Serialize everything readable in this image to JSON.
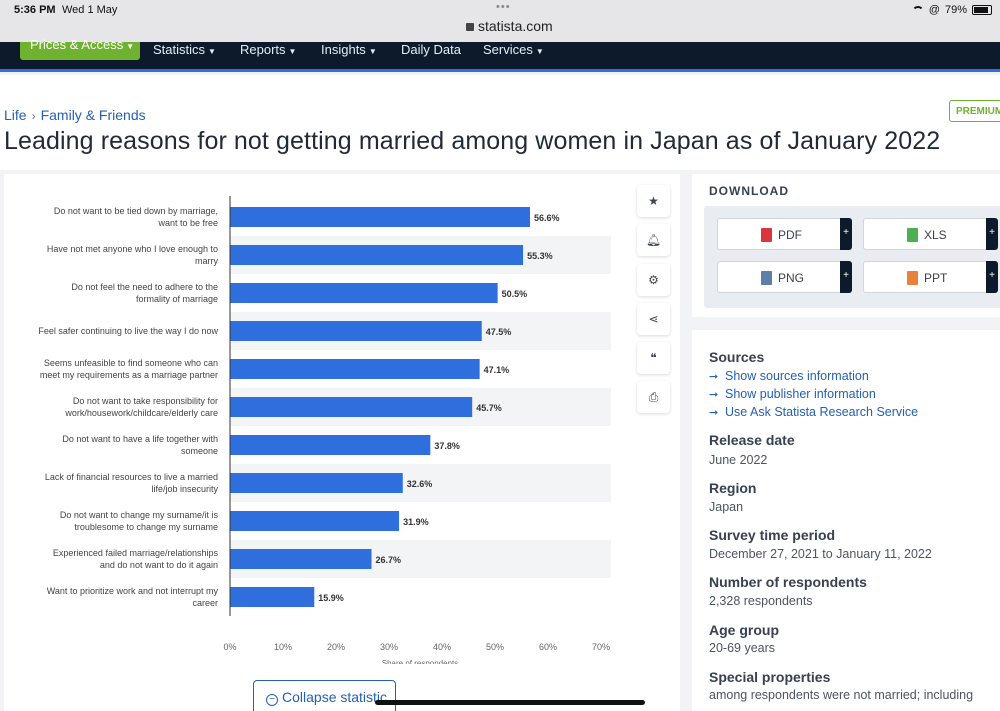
{
  "status_bar": {
    "time": "5:36 PM",
    "date": "Wed 1 May",
    "url": "statista.com",
    "battery": "79%"
  },
  "nav": {
    "items": [
      {
        "label": "Prices & Access"
      },
      {
        "label": "Statistics"
      },
      {
        "label": "Reports"
      },
      {
        "label": "Insights"
      },
      {
        "label": "Daily Data"
      },
      {
        "label": "Services"
      }
    ]
  },
  "breadcrumb": [
    "Life",
    "Family & Friends"
  ],
  "premium_badge": "PREMIUM",
  "title": "Leading reasons for not getting married among women in Japan as of January 2022",
  "tools": [
    "star-icon",
    "bell-icon",
    "gear-icon",
    "share-icon",
    "quote-icon",
    "print-icon"
  ],
  "collapse_label": "Collapse statistic",
  "download": {
    "title": "DOWNLOAD",
    "buttons": [
      {
        "label": "PDF",
        "icon": "pdf-file-icon",
        "color": "#d9363e"
      },
      {
        "label": "XLS",
        "icon": "xls-file-icon",
        "color": "#4caf50"
      },
      {
        "label": "PNG",
        "icon": "png-file-icon",
        "color": "#5b7fa8"
      },
      {
        "label": "PPT",
        "icon": "ppt-file-icon",
        "color": "#e8823b"
      }
    ],
    "plus": "+"
  },
  "info": {
    "sources_title": "Sources",
    "links": [
      "Show sources information",
      "Show publisher information",
      "Use Ask Statista Research Service"
    ],
    "release_date_title": "Release date",
    "release_date": "June 2022",
    "region_title": "Region",
    "region": "Japan",
    "survey_title": "Survey time period",
    "survey": "December 27, 2021 to January 11, 2022",
    "respondents_title": "Number of respondents",
    "respondents": "2,328 respondents",
    "age_title": "Age group",
    "age": "20-69 years",
    "special_title": "Special properties",
    "special": "among respondents were not married; including"
  },
  "colors": {
    "bar": "#2f6fdd",
    "nav_bg": "#0c1a2b",
    "accent_green": "#6fb22f",
    "link": "#2460b4"
  },
  "chart_data": {
    "type": "bar",
    "orientation": "horizontal",
    "categories": [
      [
        "Do not want to be tied down by marriage,",
        "want to be free"
      ],
      [
        "Have not met anyone who I love enough to",
        "marry"
      ],
      [
        "Do not feel the need to adhere to the",
        "formality of marriage"
      ],
      [
        "Feel safer continuing to live the way I do now"
      ],
      [
        "Seems unfeasible to find someone who can",
        "meet my requirements as a marriage partner"
      ],
      [
        "Do not want to take responsibility for",
        "work/housework/childcare/elderly care"
      ],
      [
        "Do not want to have a life together with",
        "someone"
      ],
      [
        "Lack of financial resources to live a married",
        "life/job insecurity"
      ],
      [
        "Do not want to change my surname/it is",
        "troublesome to change my surname"
      ],
      [
        "Experienced failed marriage/relationships",
        "and do not want to do it again"
      ],
      [
        "Want to prioritize work and not interrupt my",
        "career"
      ]
    ],
    "values": [
      56.6,
      55.3,
      50.5,
      47.5,
      47.1,
      45.7,
      37.8,
      32.6,
      31.9,
      26.7,
      15.9
    ],
    "value_labels": [
      "56.6%",
      "55.3%",
      "50.5%",
      "47.5%",
      "47.1%",
      "45.7%",
      "37.8%",
      "32.6%",
      "31.9%",
      "26.7%",
      "15.9%"
    ],
    "xticks": [
      "0%",
      "10%",
      "20%",
      "30%",
      "40%",
      "50%",
      "60%",
      "70%"
    ],
    "xlim": [
      0,
      70
    ],
    "xlabel": "Share of respondents",
    "grid": false
  }
}
